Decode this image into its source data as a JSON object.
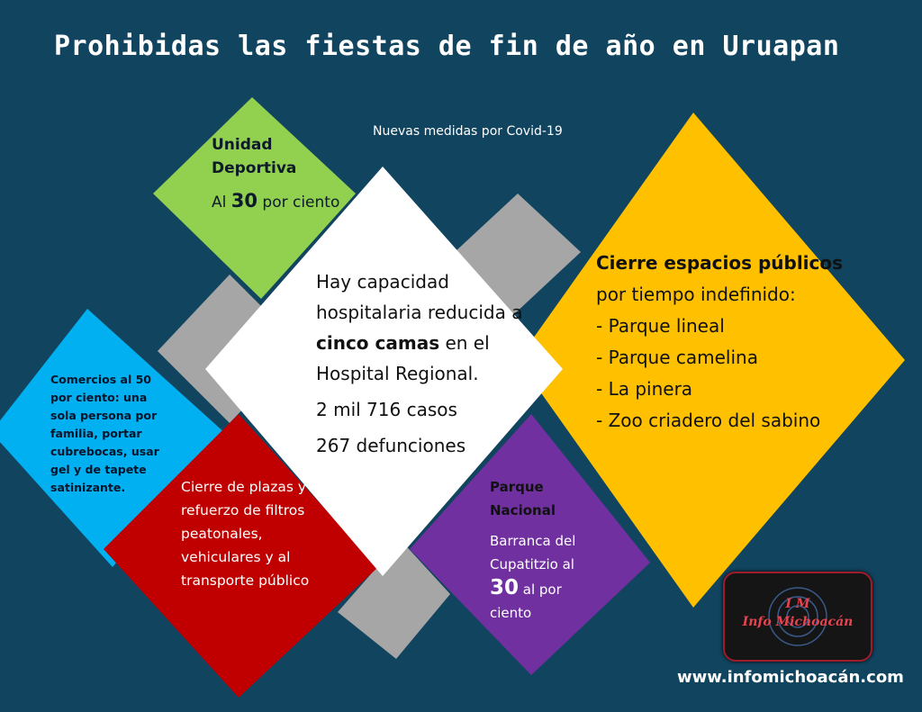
{
  "title": "Prohibidas las fiestas de fin de año en Uruapan",
  "subtitle": "Nuevas medidas por Covid-19",
  "colors": {
    "background": "#11445f",
    "green": "#92d050",
    "white": "#ffffff",
    "yellow": "#ffc000",
    "blue": "#00b0f0",
    "red": "#c00000",
    "purple": "#7030a0",
    "gray": "#a6a6a6"
  },
  "green": {
    "heading": "Unidad Deportiva",
    "pre": "Al ",
    "num": "30",
    "post": " por ciento"
  },
  "center": {
    "l1": "Hay capacidad hospitalaria reducida a ",
    "b1": "cinco camas",
    "l2": " en el Hospital Regional.",
    "cases": "2 mil 716 casos",
    "deaths": "267 defunciones"
  },
  "yellow": {
    "b1": "Cierre espacios públicos",
    "l1": " por tiempo indefinido:",
    "items": [
      "- Parque lineal",
      "- Parque camelina",
      "- La pinera",
      "- Zoo criadero del sabino"
    ]
  },
  "blue": {
    "text": "Comercios al 50 por ciento: una sola persona por familia, portar cubrebocas, usar gel y de tapete satinizante."
  },
  "red": {
    "text": "Cierre de plazas y refuerzo de filtros peatonales, vehiculares y al transporte público"
  },
  "purple": {
    "heading": "Parque Nacional",
    "l1": "Barranca del Cupatitzio al",
    "num": "30",
    "post": " al por ciento"
  },
  "logo": {
    "line1": "I M",
    "line2": "Info Michoacán"
  },
  "url": "www.infomichoacán.com"
}
